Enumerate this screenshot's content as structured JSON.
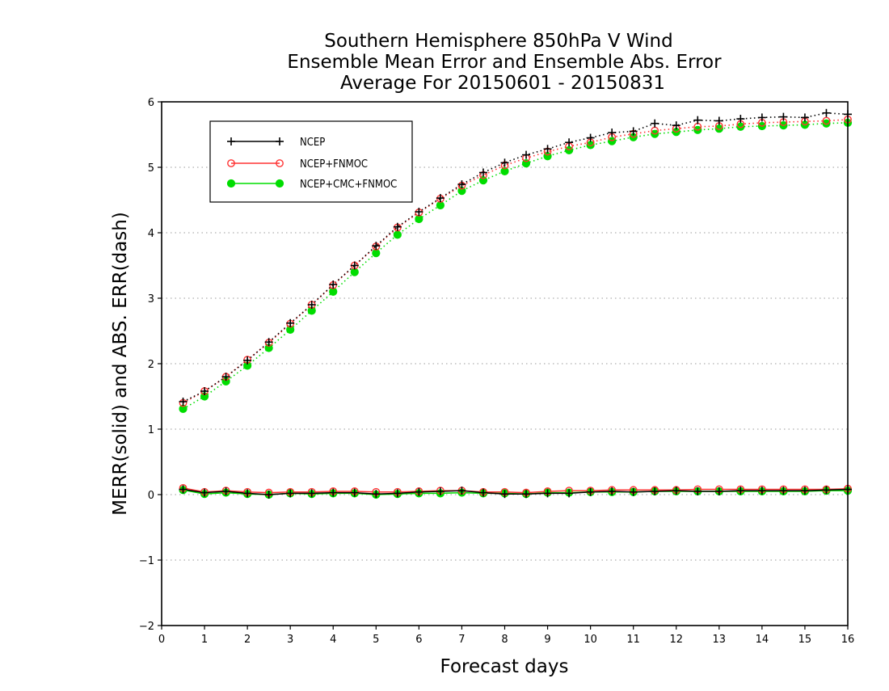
{
  "chart_data": {
    "type": "line",
    "title": [
      "Southern Hemisphere 850hPa V Wind",
      "Ensemble Mean Error and Ensemble Abs. Error",
      "Average For 20150601 - 20150831"
    ],
    "xlabel": "Forecast days",
    "ylabel": "MERR(solid) and ABS. ERR(dash)",
    "xlim": [
      0,
      16
    ],
    "ylim": [
      -2,
      6
    ],
    "xticks": [
      0,
      1,
      2,
      3,
      4,
      5,
      6,
      7,
      8,
      9,
      10,
      11,
      12,
      13,
      14,
      15,
      16
    ],
    "yticks": [
      -2,
      -1,
      0,
      1,
      2,
      3,
      4,
      5,
      6
    ],
    "ytick_labels": [
      "−2",
      "−1",
      "0",
      "1",
      "2",
      "3",
      "4",
      "5",
      "6"
    ],
    "grid": "horizontal dotted at y ticks",
    "legend_position": "top-left",
    "x": [
      0.5,
      1.0,
      1.5,
      2.0,
      2.5,
      3.0,
      3.5,
      4.0,
      4.5,
      5.0,
      5.5,
      6.0,
      6.5,
      7.0,
      7.5,
      8.0,
      8.5,
      9.0,
      9.5,
      10.0,
      10.5,
      11.0,
      11.5,
      12.0,
      12.5,
      13.0,
      13.5,
      14.0,
      14.5,
      15.0,
      15.5,
      16.0
    ],
    "series": [
      {
        "name": "NCEP",
        "color": "#000000",
        "marker": "plus",
        "mean_error": [
          0.08,
          0.03,
          0.05,
          0.02,
          0.0,
          0.02,
          0.02,
          0.03,
          0.03,
          0.01,
          0.02,
          0.04,
          0.05,
          0.06,
          0.03,
          0.01,
          0.01,
          0.02,
          0.02,
          0.04,
          0.05,
          0.04,
          0.05,
          0.06,
          0.05,
          0.05,
          0.06,
          0.06,
          0.06,
          0.06,
          0.07,
          0.08
        ],
        "abs_error": [
          1.42,
          1.58,
          1.8,
          2.05,
          2.33,
          2.62,
          2.9,
          3.21,
          3.5,
          3.8,
          4.09,
          4.32,
          4.53,
          4.74,
          4.92,
          5.07,
          5.19,
          5.28,
          5.38,
          5.45,
          5.53,
          5.55,
          5.67,
          5.64,
          5.72,
          5.71,
          5.74,
          5.76,
          5.77,
          5.76,
          5.83,
          5.81
        ]
      },
      {
        "name": "NCEP+FNMOC",
        "color": "#ff3333",
        "marker": "open-circle",
        "mean_error": [
          0.1,
          0.04,
          0.06,
          0.04,
          0.03,
          0.04,
          0.04,
          0.05,
          0.05,
          0.04,
          0.04,
          0.05,
          0.06,
          0.06,
          0.04,
          0.04,
          0.03,
          0.05,
          0.06,
          0.06,
          0.07,
          0.07,
          0.07,
          0.07,
          0.08,
          0.08,
          0.08,
          0.08,
          0.08,
          0.08,
          0.08,
          0.09
        ],
        "abs_error": [
          1.4,
          1.58,
          1.8,
          2.06,
          2.32,
          2.61,
          2.9,
          3.2,
          3.5,
          3.79,
          4.08,
          4.31,
          4.52,
          4.72,
          4.88,
          5.03,
          5.14,
          5.24,
          5.32,
          5.38,
          5.46,
          5.51,
          5.56,
          5.59,
          5.62,
          5.63,
          5.66,
          5.68,
          5.69,
          5.7,
          5.71,
          5.73
        ]
      },
      {
        "name": "NCEP+CMC+FNMOC",
        "color": "#00dd00",
        "marker": "filled-circle",
        "mean_error": [
          0.07,
          0.01,
          0.03,
          0.01,
          0.0,
          0.02,
          0.01,
          0.02,
          0.02,
          0.0,
          0.01,
          0.02,
          0.02,
          0.03,
          0.02,
          0.02,
          0.01,
          0.03,
          0.03,
          0.04,
          0.04,
          0.04,
          0.05,
          0.05,
          0.05,
          0.05,
          0.05,
          0.05,
          0.05,
          0.05,
          0.06,
          0.06
        ],
        "abs_error": [
          1.31,
          1.5,
          1.73,
          1.97,
          2.24,
          2.52,
          2.81,
          3.1,
          3.4,
          3.69,
          3.97,
          4.21,
          4.42,
          4.64,
          4.8,
          4.94,
          5.06,
          5.17,
          5.26,
          5.34,
          5.4,
          5.46,
          5.51,
          5.54,
          5.57,
          5.59,
          5.62,
          5.63,
          5.64,
          5.65,
          5.67,
          5.68
        ]
      }
    ]
  }
}
